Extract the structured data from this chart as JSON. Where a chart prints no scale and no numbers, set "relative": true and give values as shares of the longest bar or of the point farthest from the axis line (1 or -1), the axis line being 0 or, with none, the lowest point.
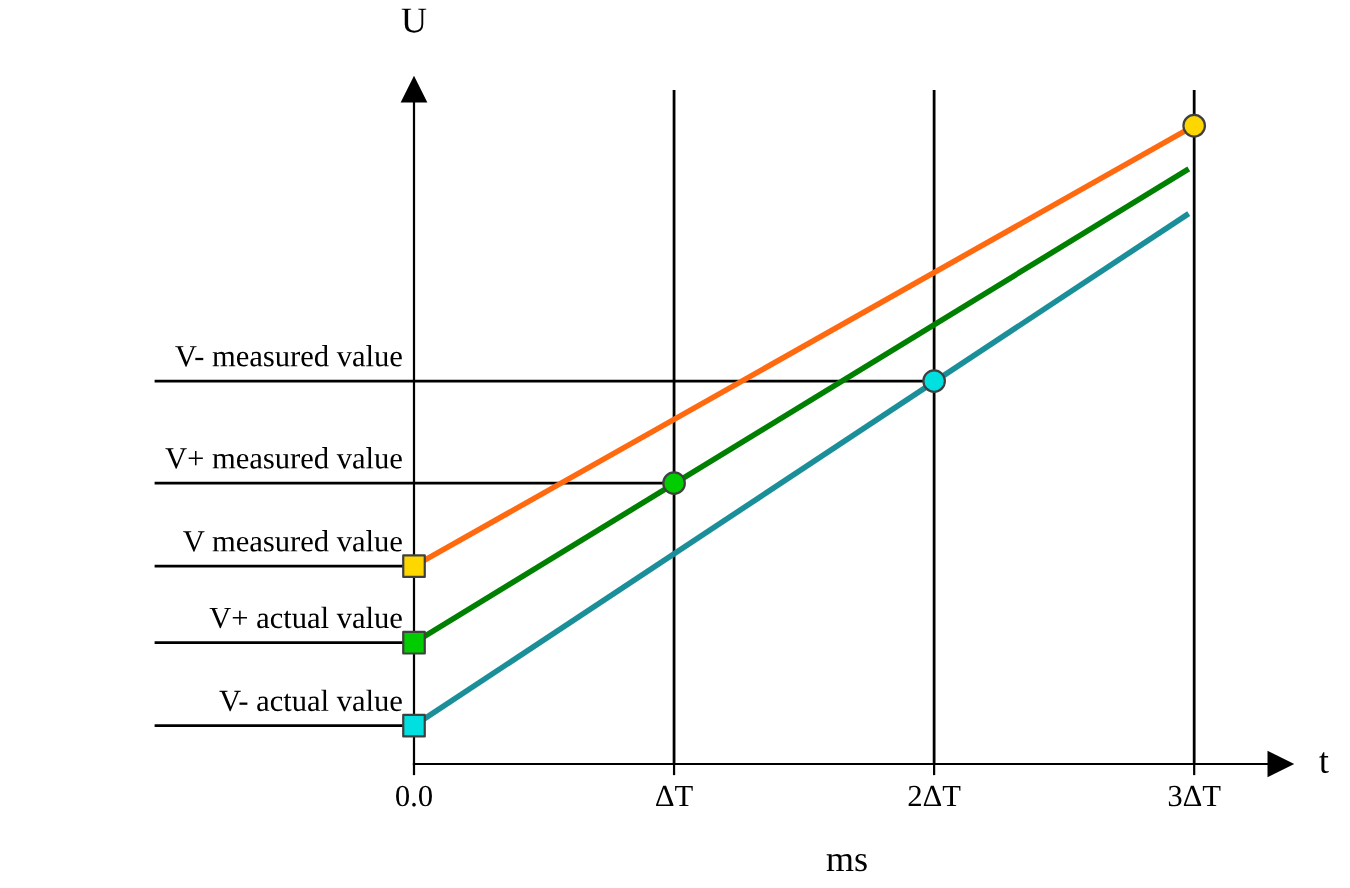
{
  "chart_data": {
    "type": "line",
    "relative": true,
    "ylabel": "U",
    "xlabel": "ms",
    "annotations": [
      "t"
    ],
    "xlim": [
      0,
      3.33
    ],
    "xticks": [
      {
        "value": 0,
        "label": "0.0"
      },
      {
        "value": 1,
        "label": "ΔT"
      },
      {
        "value": 2,
        "label": "2ΔT"
      },
      {
        "value": 3,
        "label": "3ΔT"
      }
    ],
    "grid": false,
    "legend": false,
    "line_style": "solid",
    "series": [
      {
        "color": "#ff6a10",
        "x": [
          0,
          3
        ],
        "values": [
          0.31,
          1
        ]
      },
      {
        "color": "#008000",
        "x": [
          0,
          2.97
        ],
        "values": [
          0.19,
          0.93
        ]
      },
      {
        "color": "#1a8f9a",
        "x": [
          0,
          2.97
        ],
        "values": [
          0.06,
          0.86
        ]
      },
      {
        "type": "scatter",
        "marker": "square",
        "color": "#ffd700",
        "x": [
          0
        ],
        "values": [
          0.31
        ]
      },
      {
        "type": "scatter",
        "marker": "square",
        "color": "#00cc00",
        "x": [
          0
        ],
        "values": [
          0.19
        ]
      },
      {
        "type": "scatter",
        "marker": "square",
        "color": "#00e0e0",
        "x": [
          0
        ],
        "values": [
          0.06
        ]
      },
      {
        "type": "scatter",
        "marker": "circle",
        "color": "#00cc00",
        "x": [
          1
        ],
        "values": [
          0.44
        ]
      },
      {
        "type": "scatter",
        "marker": "circle",
        "color": "#00e0e0",
        "x": [
          2
        ],
        "values": [
          0.6
        ]
      },
      {
        "type": "scatter",
        "marker": "circle",
        "color": "#ffd700",
        "x": [
          3
        ],
        "values": [
          1
        ]
      }
    ],
    "ref_lines": [
      {
        "axis": "y",
        "value": 0.6,
        "label": "V- measured value"
      },
      {
        "axis": "y",
        "value": 0.44,
        "label": "V+ measured value"
      },
      {
        "axis": "y",
        "value": 0.31,
        "label": "V measured value"
      },
      {
        "axis": "y",
        "value": 0.19,
        "label": "V+ actual value"
      },
      {
        "axis": "y",
        "value": 0.06,
        "label": "V- actual value"
      },
      {
        "axis": "x",
        "value": 1
      },
      {
        "axis": "x",
        "value": 2
      },
      {
        "axis": "x",
        "value": 3
      }
    ]
  }
}
